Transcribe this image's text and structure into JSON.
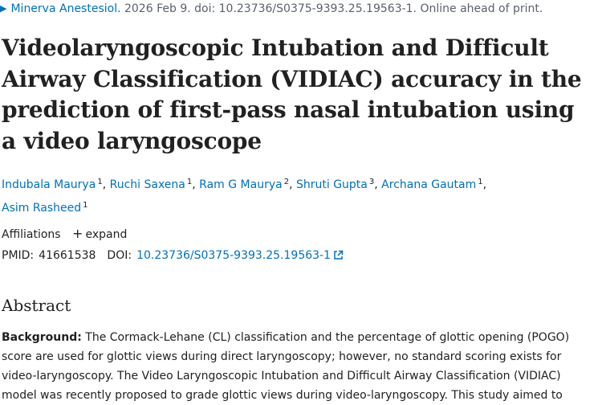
{
  "citation": {
    "journal": "Minerva Anestesiol.",
    "details": " 2026 Feb 9. doi: 10.23736/S0375-9393.25.19563-1. Online ahead of print."
  },
  "title": "Videolaryngoscopic Intubation and Difficult Airway Classification (VIDIAC) accuracy in the prediction of first-pass nasal intubation using a video laryngoscope",
  "authors": [
    {
      "name": "Indubala Maurya",
      "aff": "1"
    },
    {
      "name": "Ruchi Saxena",
      "aff": "1"
    },
    {
      "name": "Ram G Maurya",
      "aff": "2"
    },
    {
      "name": "Shruti Gupta",
      "aff": "3"
    },
    {
      "name": "Archana Gautam",
      "aff": "1"
    },
    {
      "name": "Asim Rasheed",
      "aff": "1"
    }
  ],
  "affiliations": {
    "label": "Affiliations",
    "toggle": "expand"
  },
  "ids": {
    "pmid_label": "PMID:",
    "pmid": "41661538",
    "doi_label": "DOI:",
    "doi": "10.23736/S0375-9393.25.19563-1"
  },
  "abstract": {
    "heading": "Abstract",
    "background_label": "Background:",
    "background_text": " The Cormack-Lehane (CL) classification and the percentage of glottic opening (POGO) score are used for glottic views during direct laryngoscopy; however, no standard scoring exists for video-laryngoscopy. The Video Laryngoscopic Intubation and Difficult Airway Classification (VIDIAC) model was recently proposed to grade glottic views during video-laryngoscopy. This study aimed to"
  },
  "icons": {
    "citation_arrow": "chevron-right-icon",
    "expand": "plus-icon",
    "external": "external-link-icon"
  },
  "colors": {
    "link": "#0071bc",
    "text": "#212121",
    "muted": "#5b616b"
  }
}
